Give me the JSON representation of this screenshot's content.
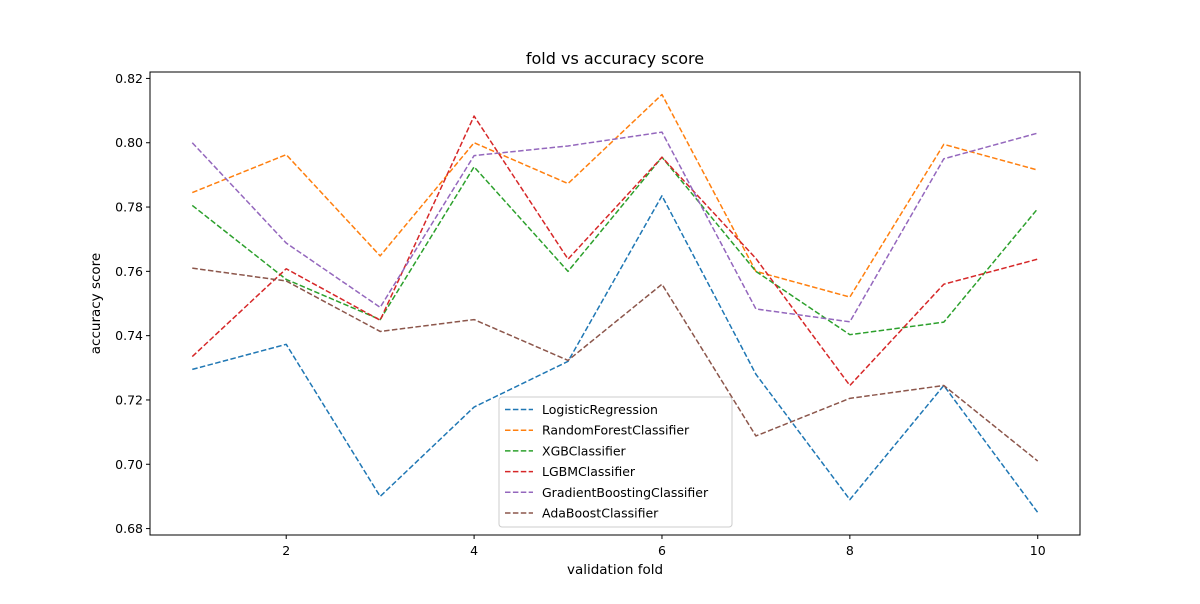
{
  "chart_data": {
    "type": "line",
    "title": "fold vs accuracy score",
    "xlabel": "validation fold",
    "ylabel": "accuracy score",
    "xlim": [
      0.55,
      10.45
    ],
    "ylim": [
      0.678,
      0.822
    ],
    "x_ticks": [
      2,
      4,
      6,
      8,
      10
    ],
    "y_ticks": [
      0.68,
      0.7,
      0.72,
      0.74,
      0.76,
      0.78,
      0.8,
      0.82
    ],
    "y_tick_labels": [
      "0.68",
      "0.70",
      "0.72",
      "0.74",
      "0.76",
      "0.78",
      "0.80",
      "0.82"
    ],
    "grid": false,
    "line_style": "dashed",
    "legend_position": "lower-center",
    "x": [
      1,
      2,
      3,
      4,
      5,
      6,
      7,
      8,
      9,
      10
    ],
    "series": [
      {
        "name": "LogisticRegression",
        "color": "#1f77b4",
        "values": [
          0.7295,
          0.7373,
          0.69,
          0.7178,
          0.732,
          0.7835,
          0.728,
          0.689,
          0.7245,
          0.685
        ]
      },
      {
        "name": "RandomForestClassifier",
        "color": "#ff7f0e",
        "values": [
          0.7845,
          0.7963,
          0.7648,
          0.8,
          0.7873,
          0.815,
          0.76,
          0.752,
          0.7995,
          0.7915
        ]
      },
      {
        "name": "XGBClassifier",
        "color": "#2ca02c",
        "values": [
          0.7805,
          0.7575,
          0.745,
          0.7925,
          0.76,
          0.7955,
          0.76,
          0.7403,
          0.7442,
          0.7795
        ]
      },
      {
        "name": "LGBMClassifier",
        "color": "#d62728",
        "values": [
          0.7335,
          0.7608,
          0.7448,
          0.8083,
          0.7638,
          0.7955,
          0.764,
          0.7245,
          0.756,
          0.7638
        ]
      },
      {
        "name": "GradientBoostingClassifier",
        "color": "#9467bd",
        "values": [
          0.8,
          0.7688,
          0.7488,
          0.796,
          0.799,
          0.8033,
          0.7483,
          0.7443,
          0.795,
          0.803
        ]
      },
      {
        "name": "AdaBoostClassifier",
        "color": "#8c564b",
        "values": [
          0.761,
          0.757,
          0.7413,
          0.745,
          0.7323,
          0.756,
          0.7088,
          0.7205,
          0.7245,
          0.701
        ]
      }
    ]
  }
}
